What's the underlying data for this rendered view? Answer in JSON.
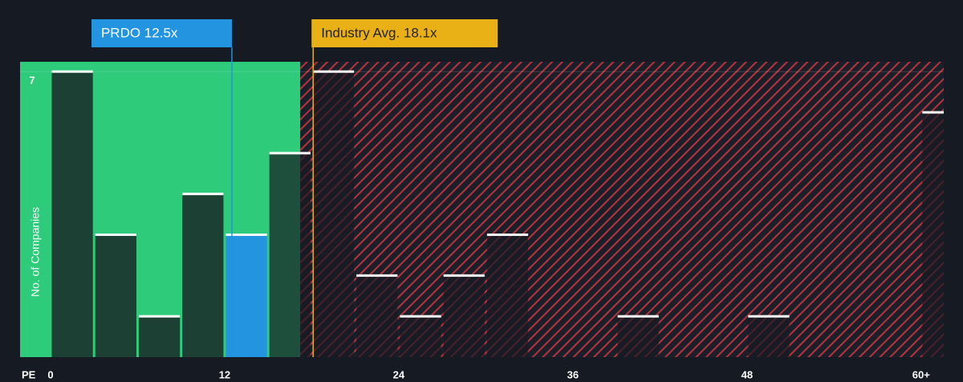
{
  "chart_data": {
    "type": "histogram",
    "y_label": "No. of Companies",
    "x_label": "PE",
    "bins": [
      0,
      3,
      6,
      9,
      12,
      15,
      18,
      21,
      24,
      27,
      30,
      33,
      36,
      39,
      42,
      45,
      48,
      51,
      54,
      57,
      60,
      63
    ],
    "values": [
      7,
      3,
      1,
      4,
      3,
      5,
      7,
      2,
      1,
      2,
      3,
      0,
      0,
      1,
      0,
      0,
      1,
      0,
      0,
      0,
      6
    ],
    "xlim": [
      -2.1,
      61.56
    ],
    "ylim": [
      0,
      7.24
    ],
    "xticks": [
      0,
      12,
      24,
      36,
      48,
      {
        "value": 60,
        "label": "60+"
      }
    ],
    "yticks": [
      7
    ],
    "grid": true,
    "annotations": [
      {
        "label": "PRDO 12.5x",
        "value": 12.5,
        "color": "#2394df"
      },
      {
        "label": "Industry Avg. 18.1x",
        "value": 18.1,
        "color": "#e9b116"
      }
    ]
  }
}
